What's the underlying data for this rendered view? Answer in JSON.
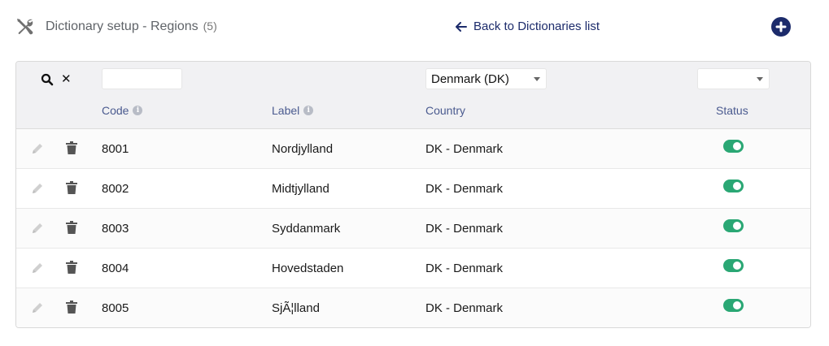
{
  "header": {
    "title": "Dictionary setup - Regions",
    "count": "(5)",
    "back_label": "Back to Dictionaries list",
    "icon": "tools-icon",
    "add_icon": "plus-circle-icon"
  },
  "filters": {
    "code_value": "",
    "country_selected": "Denmark (DK)",
    "status_selected": ""
  },
  "columns": {
    "code": "Code",
    "label": "Label",
    "country": "Country",
    "status": "Status"
  },
  "rows": [
    {
      "code": "8001",
      "label": "Nordjylland",
      "country": "DK - Denmark",
      "status_on": true
    },
    {
      "code": "8002",
      "label": "Midtjylland",
      "country": "DK - Denmark",
      "status_on": true
    },
    {
      "code": "8003",
      "label": "Syddanmark",
      "country": "DK - Denmark",
      "status_on": true
    },
    {
      "code": "8004",
      "label": "Hovedstaden",
      "country": "DK - Denmark",
      "status_on": true
    },
    {
      "code": "8005",
      "label": "SjÃ¦lland",
      "country": "DK - Denmark",
      "status_on": true
    }
  ],
  "colors": {
    "accent": "#1c2b6b",
    "toggle_on": "#2aa774",
    "header_bg": "#f1f1f3",
    "column_header_text": "#4a5a8f"
  }
}
